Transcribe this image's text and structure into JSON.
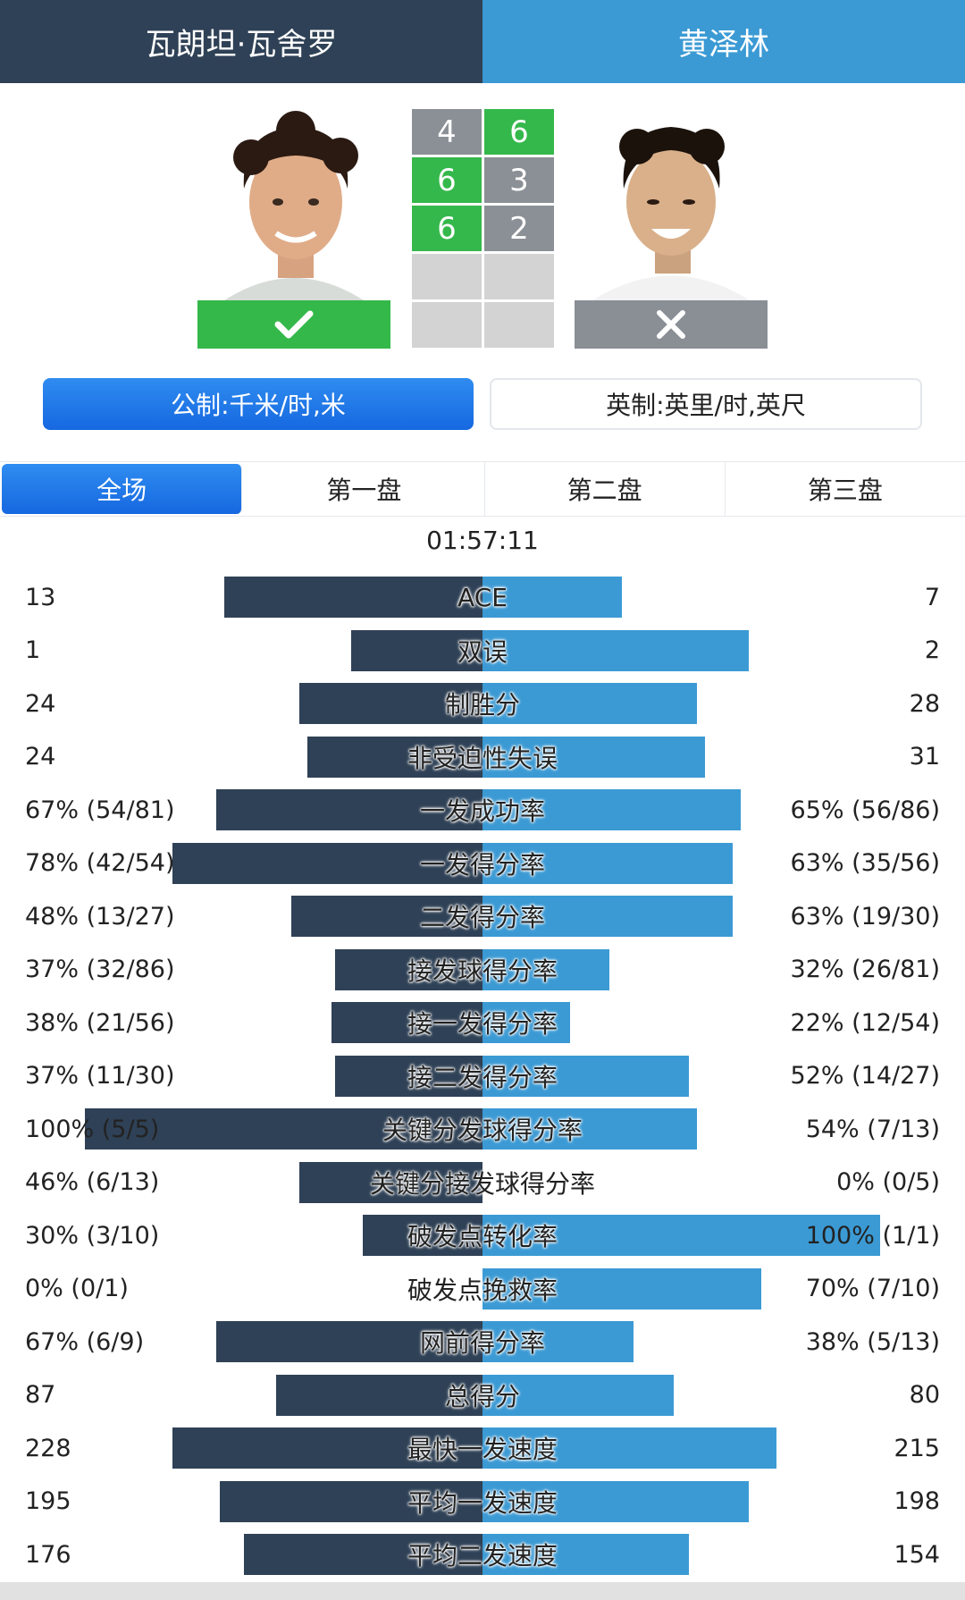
{
  "players": {
    "left": {
      "name": "瓦朗坦·瓦舍罗",
      "result": "win"
    },
    "right": {
      "name": "黄泽林",
      "result": "lose"
    }
  },
  "score": {
    "sets": [
      {
        "left": "4",
        "right": "6",
        "winner": "right"
      },
      {
        "left": "6",
        "right": "3",
        "winner": "left"
      },
      {
        "left": "6",
        "right": "2",
        "winner": "left"
      },
      {
        "left": "",
        "right": "",
        "winner": "none"
      },
      {
        "left": "",
        "right": "",
        "winner": "none"
      }
    ]
  },
  "units": {
    "metric": "公制:千米/时,米",
    "imperial": "英制:英里/时,英尺",
    "selected": "metric"
  },
  "tabs": [
    "全场",
    "第一盘",
    "第二盘",
    "第三盘"
  ],
  "active_tab": 0,
  "duration": "01:57:11",
  "colors": {
    "left": "#2f4156",
    "right": "#3b9ad4",
    "win": "#34b84a",
    "lose": "#8a8f96"
  },
  "stats": [
    {
      "label": "ACE",
      "left": "13",
      "right": "7",
      "left_frac": 0.65,
      "right_frac": 0.35
    },
    {
      "label": "双误",
      "left": "1",
      "right": "2",
      "left_frac": 0.33,
      "right_frac": 0.67
    },
    {
      "label": "制胜分",
      "left": "24",
      "right": "28",
      "left_frac": 0.46,
      "right_frac": 0.54
    },
    {
      "label": "非受迫性失误",
      "left": "24",
      "right": "31",
      "left_frac": 0.44,
      "right_frac": 0.56
    },
    {
      "label": "一发成功率",
      "left": "67% (54/81)",
      "right": "65% (56/86)",
      "left_frac": 0.67,
      "right_frac": 0.65
    },
    {
      "label": "一发得分率",
      "left": "78% (42/54)",
      "right": "63% (35/56)",
      "left_frac": 0.78,
      "right_frac": 0.63
    },
    {
      "label": "二发得分率",
      "left": "48% (13/27)",
      "right": "63% (19/30)",
      "left_frac": 0.48,
      "right_frac": 0.63
    },
    {
      "label": "接发球得分率",
      "left": "37% (32/86)",
      "right": "32% (26/81)",
      "left_frac": 0.37,
      "right_frac": 0.32
    },
    {
      "label": "接一发得分率",
      "left": "38% (21/56)",
      "right": "22% (12/54)",
      "left_frac": 0.38,
      "right_frac": 0.22
    },
    {
      "label": "接二发得分率",
      "left": "37% (11/30)",
      "right": "52% (14/27)",
      "left_frac": 0.37,
      "right_frac": 0.52
    },
    {
      "label": "关键分发球得分率",
      "left": "100% (5/5)",
      "right": "54% (7/13)",
      "left_frac": 1.0,
      "right_frac": 0.54
    },
    {
      "label": "关键分接发球得分率",
      "left": "46% (6/13)",
      "right": "0% (0/5)",
      "left_frac": 0.46,
      "right_frac": 0.0
    },
    {
      "label": "破发点转化率",
      "left": "30% (3/10)",
      "right": "100% (1/1)",
      "left_frac": 0.3,
      "right_frac": 1.0
    },
    {
      "label": "破发点挽救率",
      "left": "0% (0/1)",
      "right": "70% (7/10)",
      "left_frac": 0.0,
      "right_frac": 0.7
    },
    {
      "label": "网前得分率",
      "left": "67% (6/9)",
      "right": "38% (5/13)",
      "left_frac": 0.67,
      "right_frac": 0.38
    },
    {
      "label": "总得分",
      "left": "87",
      "right": "80",
      "left_frac": 0.52,
      "right_frac": 0.48
    },
    {
      "label": "最快一发速度",
      "left": "228",
      "right": "215",
      "left_frac": 0.78,
      "right_frac": 0.74
    },
    {
      "label": "平均一发速度",
      "left": "195",
      "right": "198",
      "left_frac": 0.66,
      "right_frac": 0.67
    },
    {
      "label": "平均二发速度",
      "left": "176",
      "right": "154",
      "left_frac": 0.6,
      "right_frac": 0.52
    }
  ]
}
